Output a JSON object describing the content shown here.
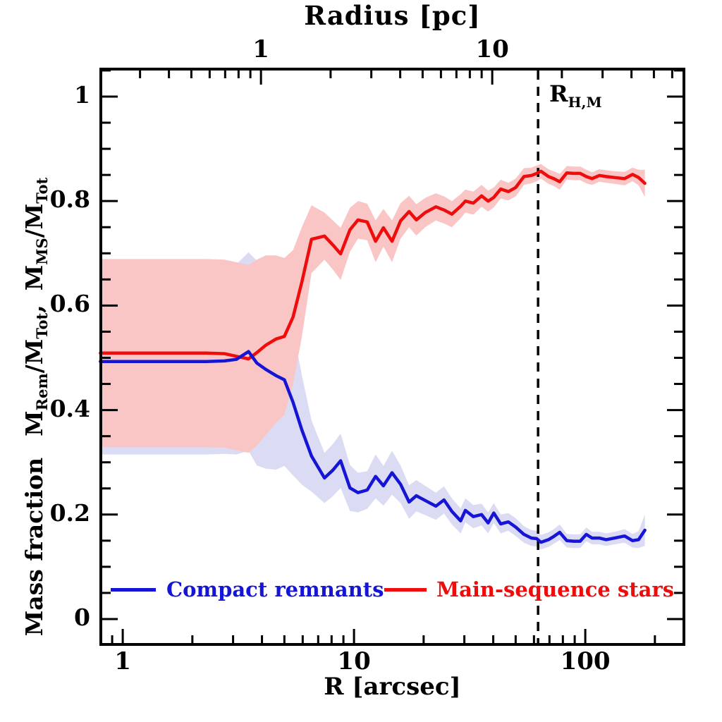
{
  "figure": {
    "background": "#ffffff",
    "frame_color": "#000000",
    "top_axis": {
      "title": "Radius [pc]",
      "major_ticks": [
        1,
        10
      ],
      "tick_labels": [
        "1",
        "10"
      ],
      "minor_ticks": [
        0.3,
        0.4,
        0.5,
        0.6,
        0.7,
        0.8,
        0.9,
        2,
        3,
        4,
        5,
        6,
        7,
        8,
        9,
        20,
        30,
        40,
        50,
        60
      ],
      "arcsec_per_pc": 3.96
    },
    "x_axis": {
      "title": "R [arcsec]",
      "scale": "log",
      "major_ticks": [
        1,
        10,
        100
      ],
      "tick_labels": [
        "1",
        "10",
        "100"
      ],
      "minor_ticks": [
        0.9,
        2,
        3,
        4,
        5,
        6,
        7,
        8,
        9,
        20,
        30,
        40,
        50,
        60,
        70,
        80,
        90,
        200
      ]
    },
    "y_axis": {
      "title_text": "Mass fraction",
      "title_math_tokens": [
        {
          "t": "M"
        },
        {
          "s": "Rem"
        },
        {
          "t": "/M"
        },
        {
          "s": "Tot"
        },
        {
          "t": ","
        },
        {
          "gap": true
        },
        {
          "t": "M"
        },
        {
          "s": "MS"
        },
        {
          "t": "/M"
        },
        {
          "s": "Tot"
        }
      ],
      "scale": "linear",
      "major_ticks": [
        0,
        0.2,
        0.4,
        0.6,
        0.8,
        1
      ],
      "tick_labels": [
        "0",
        "0.2",
        "0.4",
        "0.6",
        "0.8",
        "1"
      ],
      "minor_step": 0.05
    },
    "vline": {
      "x_arcsec": 62.5,
      "style": "dashed",
      "color": "#000000",
      "label_base": "R",
      "label_sub": "H,M"
    }
  },
  "legend": {
    "items": [
      {
        "label": "Compact remnants",
        "color": "#1515d6"
      },
      {
        "label": "Main-sequence stars",
        "color": "#ee0c0c"
      }
    ]
  },
  "chart_data": {
    "type": "line",
    "title": "",
    "xlabel": "R [arcsec]",
    "top_xlabel": "Radius [pc]",
    "ylabel": "Mass fraction  M_Rem/M_Tot, M_MS/M_Tot",
    "x_scale": "log",
    "x_range": [
      0.804,
      267
    ],
    "y_range": [
      -0.0486,
      1.0526
    ],
    "grid": false,
    "legend_position": "bottom-inside",
    "annotations": {
      "vline_x_arcsec": 62.5,
      "vline_label": "R_H,M",
      "arcsec_per_pc": 3.96
    },
    "x": [
      0.8,
      1.0,
      1.25,
      1.55,
      1.9,
      2.3,
      2.75,
      3.1,
      3.5,
      3.8,
      4.15,
      4.6,
      5.0,
      5.45,
      5.95,
      6.55,
      7.45,
      8.1,
      8.75,
      9.6,
      10.4,
      11.4,
      12.4,
      13.4,
      14.6,
      15.9,
      17.3,
      18.6,
      20.3,
      22.6,
      24.5,
      26.5,
      28.9,
      30.3,
      32.8,
      35.6,
      38.0,
      40.2,
      43.1,
      46.5,
      50.0,
      54.3,
      58.5,
      61.6,
      64.3,
      69.3,
      73.0,
      77.5,
      83.2,
      89.0,
      95.0,
      101,
      107,
      115,
      123,
      134,
      148,
      160,
      170,
      181
    ],
    "series": [
      {
        "name": "Main-sequence stars",
        "band_name": "main-sequence-band",
        "color": "#ee0c0c",
        "band_color": "#f9c5c5",
        "values": [
          0.509,
          0.509,
          0.509,
          0.509,
          0.509,
          0.509,
          0.508,
          0.503,
          0.498,
          0.51,
          0.524,
          0.536,
          0.541,
          0.578,
          0.645,
          0.727,
          0.733,
          0.716,
          0.699,
          0.745,
          0.764,
          0.76,
          0.723,
          0.749,
          0.723,
          0.762,
          0.78,
          0.764,
          0.778,
          0.789,
          0.783,
          0.775,
          0.79,
          0.8,
          0.796,
          0.81,
          0.8,
          0.807,
          0.823,
          0.818,
          0.826,
          0.847,
          0.849,
          0.853,
          0.857,
          0.847,
          0.843,
          0.837,
          0.854,
          0.853,
          0.853,
          0.847,
          0.843,
          0.849,
          0.847,
          0.845,
          0.843,
          0.851,
          0.845,
          0.834
        ],
        "band_halfwidth": [
          0.18,
          0.18,
          0.18,
          0.18,
          0.18,
          0.18,
          0.18,
          0.18,
          0.18,
          0.178,
          0.172,
          0.16,
          0.15,
          0.128,
          0.105,
          0.065,
          0.045,
          0.047,
          0.05,
          0.042,
          0.036,
          0.035,
          0.04,
          0.036,
          0.04,
          0.034,
          0.03,
          0.03,
          0.028,
          0.026,
          0.026,
          0.025,
          0.023,
          0.022,
          0.022,
          0.021,
          0.02,
          0.019,
          0.018,
          0.017,
          0.017,
          0.016,
          0.015,
          0.015,
          0.014,
          0.014,
          0.014,
          0.015,
          0.013,
          0.013,
          0.013,
          0.013,
          0.012,
          0.012,
          0.012,
          0.012,
          0.013,
          0.013,
          0.015,
          0.026
        ]
      },
      {
        "name": "Compact remnants",
        "band_name": "compact-remnants-band",
        "color": "#1515d6",
        "band_color": "#dbdbf4",
        "values": [
          0.493,
          0.493,
          0.493,
          0.493,
          0.493,
          0.493,
          0.494,
          0.497,
          0.512,
          0.49,
          0.478,
          0.466,
          0.458,
          0.415,
          0.362,
          0.312,
          0.27,
          0.285,
          0.303,
          0.251,
          0.242,
          0.247,
          0.273,
          0.255,
          0.28,
          0.258,
          0.224,
          0.236,
          0.227,
          0.216,
          0.228,
          0.206,
          0.188,
          0.208,
          0.196,
          0.2,
          0.184,
          0.203,
          0.182,
          0.186,
          0.176,
          0.162,
          0.155,
          0.154,
          0.147,
          0.152,
          0.158,
          0.166,
          0.15,
          0.149,
          0.149,
          0.162,
          0.155,
          0.155,
          0.152,
          0.155,
          0.159,
          0.15,
          0.152,
          0.17
        ],
        "band_halfwidth": [
          0.178,
          0.178,
          0.178,
          0.178,
          0.178,
          0.178,
          0.178,
          0.182,
          0.19,
          0.196,
          0.19,
          0.18,
          0.165,
          0.14,
          0.105,
          0.068,
          0.048,
          0.05,
          0.052,
          0.044,
          0.038,
          0.036,
          0.042,
          0.038,
          0.042,
          0.036,
          0.032,
          0.03,
          0.028,
          0.026,
          0.026,
          0.025,
          0.024,
          0.023,
          0.022,
          0.021,
          0.02,
          0.019,
          0.018,
          0.017,
          0.017,
          0.016,
          0.015,
          0.015,
          0.014,
          0.014,
          0.014,
          0.015,
          0.013,
          0.013,
          0.013,
          0.013,
          0.012,
          0.012,
          0.012,
          0.012,
          0.013,
          0.013,
          0.016,
          0.03
        ]
      }
    ]
  }
}
